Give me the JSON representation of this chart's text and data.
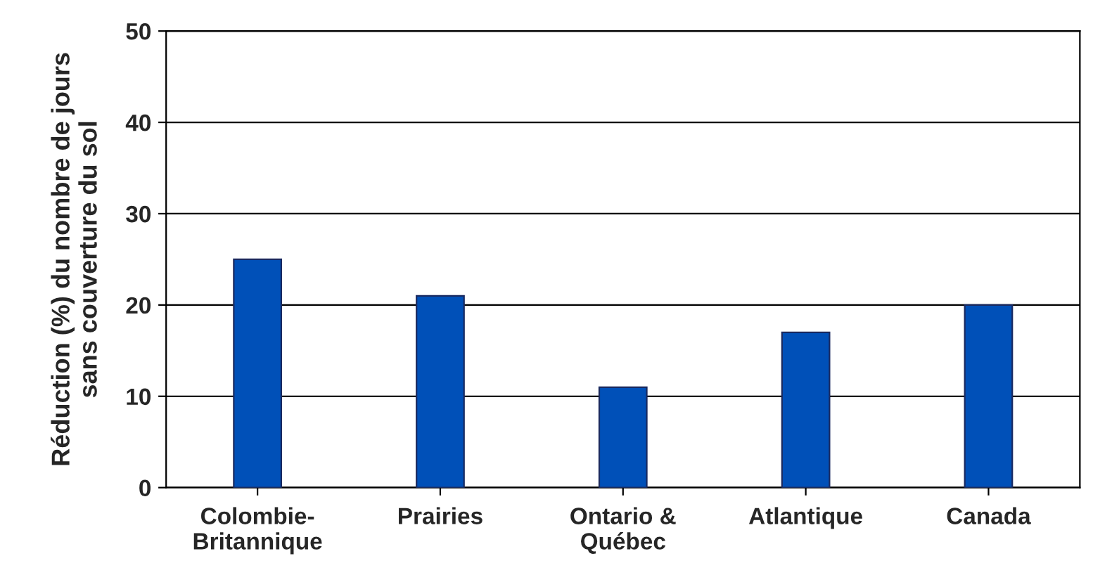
{
  "chart_data": {
    "type": "bar",
    "ylabel": "Réduction (%) du nombre de jours\nsans couverture du sol",
    "categories": [
      "Colombie-\nBritannique",
      "Prairies",
      "Ontario &\nQuébec",
      "Atlantique",
      "Canada"
    ],
    "values": [
      25,
      21,
      11,
      17,
      20
    ],
    "color": "#0050b8",
    "ylim": [
      0,
      50
    ],
    "yticks": [
      0,
      10,
      20,
      30,
      40,
      50
    ],
    "grid": "y",
    "legend": false
  }
}
